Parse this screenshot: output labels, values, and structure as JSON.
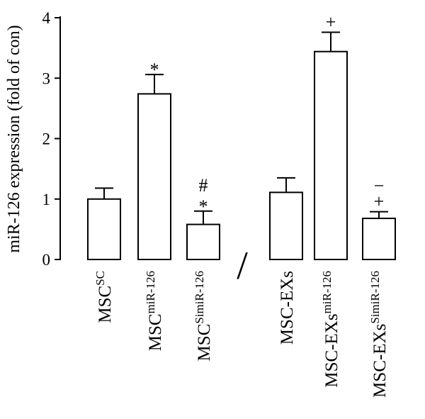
{
  "chart_data": {
    "type": "bar",
    "ylabel": "miR-126 expression (fold of con)",
    "xlabel": "",
    "title": "",
    "ylim": [
      0,
      4
    ],
    "yticks": [
      "0",
      "1",
      "2",
      "3",
      "4"
    ],
    "grid": false,
    "axis_break_symbol": "/",
    "bars": [
      {
        "base": "MSC",
        "sup": "SC",
        "value": 1.0,
        "error": 0.18,
        "marks": []
      },
      {
        "base": "MSC",
        "sup": "miR-126",
        "value": 2.74,
        "error": 0.32,
        "marks": [
          "*"
        ]
      },
      {
        "base": "MSC",
        "sup": "SimiR-126",
        "value": 0.58,
        "error": 0.22,
        "marks": [
          "*",
          "#"
        ]
      },
      {
        "base": "MSC-EXs",
        "sup": "",
        "value": 1.11,
        "error": 0.24,
        "marks": []
      },
      {
        "base": "MSC-EXs",
        "sup": "miR-126",
        "value": 3.44,
        "error": 0.32,
        "marks": [
          "+"
        ]
      },
      {
        "base": "MSC-EXs",
        "sup": "SimiR-126",
        "value": 0.68,
        "error": 0.11,
        "marks": [
          "+",
          "−"
        ]
      }
    ]
  }
}
